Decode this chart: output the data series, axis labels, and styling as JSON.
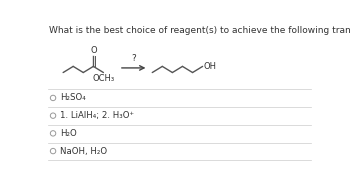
{
  "title": "What is the best choice of reagent(s) to achieve the following transformation?",
  "title_fontsize": 6.5,
  "bg_color": "#ffffff",
  "text_color": "#333333",
  "options": [
    "H₂SO₄",
    "1. LiAlH₄; 2. H₃O⁺",
    "H₂O",
    "NaOH, H₂O"
  ],
  "option_fontsize": 6.2,
  "divider_color": "#cccccc",
  "circle_color": "#999999",
  "reaction_label": "?",
  "reactant_label": "OCH₃",
  "product_label": "OH",
  "line_color": "#555555"
}
